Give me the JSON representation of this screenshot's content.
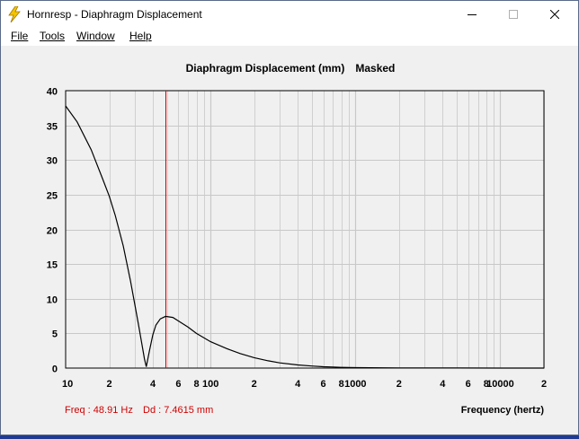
{
  "window": {
    "title": "Hornresp - Diaphragm Displacement"
  },
  "menu": {
    "file": "File",
    "tools": "Tools",
    "window": "Window",
    "help": "Help"
  },
  "readout": {
    "freq": "Freq : 48.91 Hz",
    "dd": "Dd : 7.4615 mm"
  },
  "colors": {
    "marker": "#d00000",
    "curve": "#000000",
    "grid": "#c8c8c8"
  },
  "chart_data": {
    "type": "line",
    "title": "Diaphragm Displacement (mm)",
    "subtitle": "Masked",
    "xlabel": "Frequency (hertz)",
    "ylabel": "",
    "x_scale": "log",
    "xlim": [
      10,
      20000
    ],
    "ylim": [
      0,
      40
    ],
    "grid": true,
    "y_ticks": [
      0,
      5,
      10,
      15,
      20,
      25,
      30,
      35,
      40
    ],
    "x_ticks": [
      {
        "v": 10,
        "label": "10"
      },
      {
        "v": 20,
        "label": "2"
      },
      {
        "v": 40,
        "label": "4"
      },
      {
        "v": 60,
        "label": "6"
      },
      {
        "v": 80,
        "label": "8"
      },
      {
        "v": 100,
        "label": "100"
      },
      {
        "v": 200,
        "label": "2"
      },
      {
        "v": 400,
        "label": "4"
      },
      {
        "v": 600,
        "label": "6"
      },
      {
        "v": 800,
        "label": "8"
      },
      {
        "v": 1000,
        "label": "1000"
      },
      {
        "v": 2000,
        "label": "2"
      },
      {
        "v": 4000,
        "label": "4"
      },
      {
        "v": 6000,
        "label": "6"
      },
      {
        "v": 8000,
        "label": "8"
      },
      {
        "v": 10000,
        "label": "10000"
      },
      {
        "v": 20000,
        "label": "2"
      }
    ],
    "marker_x": 48.91,
    "series": [
      {
        "x": [
          10,
          12,
          15,
          18,
          20,
          22,
          25,
          28,
          30,
          32,
          34,
          35,
          36,
          38,
          40,
          42,
          45,
          48.91,
          55,
          60,
          70,
          80,
          100,
          130,
          160,
          200,
          250,
          300,
          400,
          500,
          600,
          700,
          800,
          1000,
          2000,
          5000,
          10000,
          20000
        ],
        "y": [
          37.8,
          35.5,
          31.5,
          27.3,
          24.8,
          22.0,
          17.6,
          12.6,
          9.2,
          6.0,
          2.8,
          1.3,
          0.2,
          2.6,
          4.8,
          6.2,
          7.1,
          7.46,
          7.3,
          6.8,
          5.9,
          5.0,
          3.8,
          2.8,
          2.1,
          1.5,
          1.05,
          0.75,
          0.45,
          0.3,
          0.2,
          0.15,
          0.1,
          0.06,
          0.03,
          0.01,
          0.0,
          0.0
        ]
      }
    ]
  }
}
